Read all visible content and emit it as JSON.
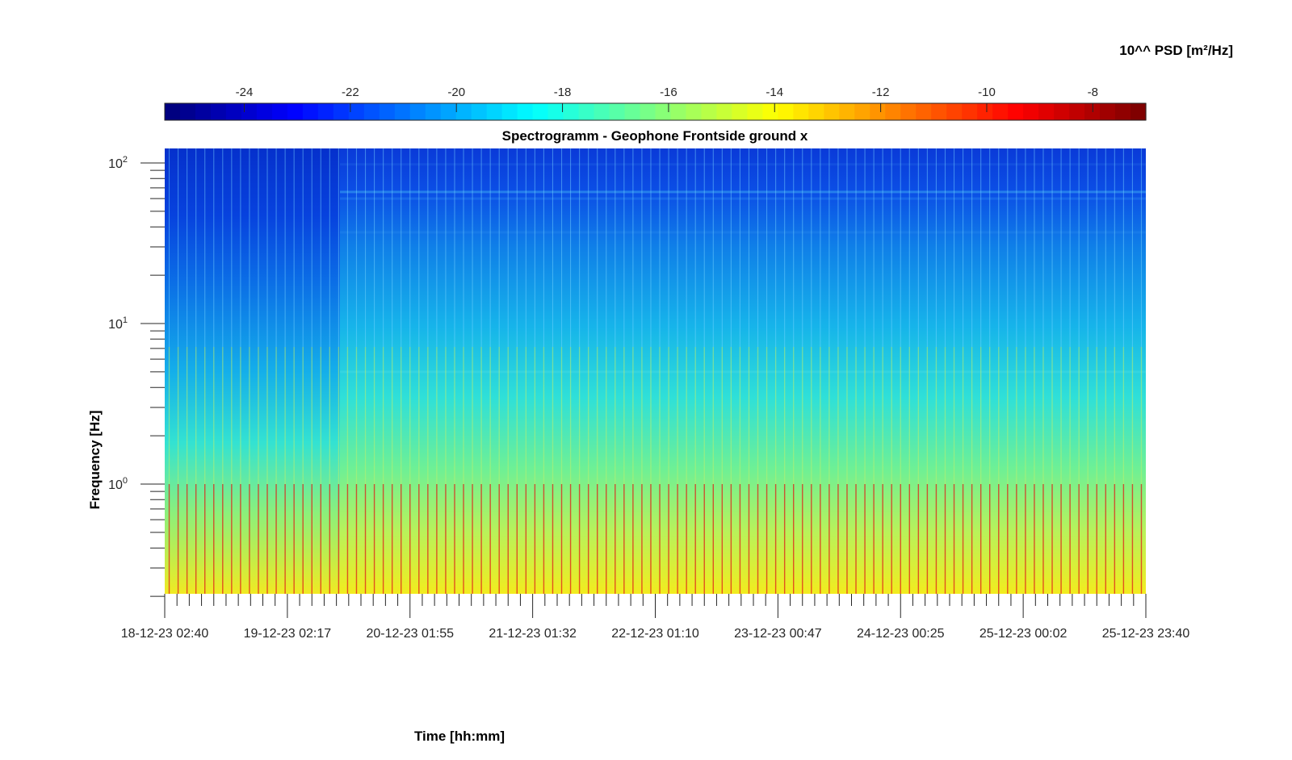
{
  "chart_data": {
    "type": "heatmap",
    "title": "Spectrogramm - Geophone Frontside ground x",
    "xlabel": "Time [hh:mm]",
    "ylabel": "Frequency [Hz]",
    "yscale": "log",
    "ylim": [
      0.2,
      125
    ],
    "x_tick_labels": [
      "18-12-23 02:40",
      "19-12-23 02:17",
      "20-12-23 01:55",
      "21-12-23 01:32",
      "22-12-23 01:10",
      "23-12-23 00:47",
      "24-12-23 00:25",
      "25-12-23 00:02",
      "25-12-23 23:40"
    ],
    "y_ticks": [
      {
        "base": "10",
        "exp": "0",
        "value": 1
      },
      {
        "base": "10",
        "exp": "1",
        "value": 10
      },
      {
        "base": "10",
        "exp": "2",
        "value": 100
      }
    ],
    "colorbar": {
      "label": "10^^ PSD [m²/Hz]",
      "location": "top",
      "colormap": "jet",
      "range": [
        -25.5,
        -7
      ],
      "ticks": [
        -24,
        -22,
        -20,
        -18,
        -16,
        -14,
        -12,
        -10,
        -8
      ]
    },
    "events": {
      "count": 110,
      "vertical_lines": true,
      "change_at_fraction": 0.18
    },
    "colors": {
      "low": "#00008f",
      "mid": "#00ffff",
      "high": "#800000"
    }
  }
}
